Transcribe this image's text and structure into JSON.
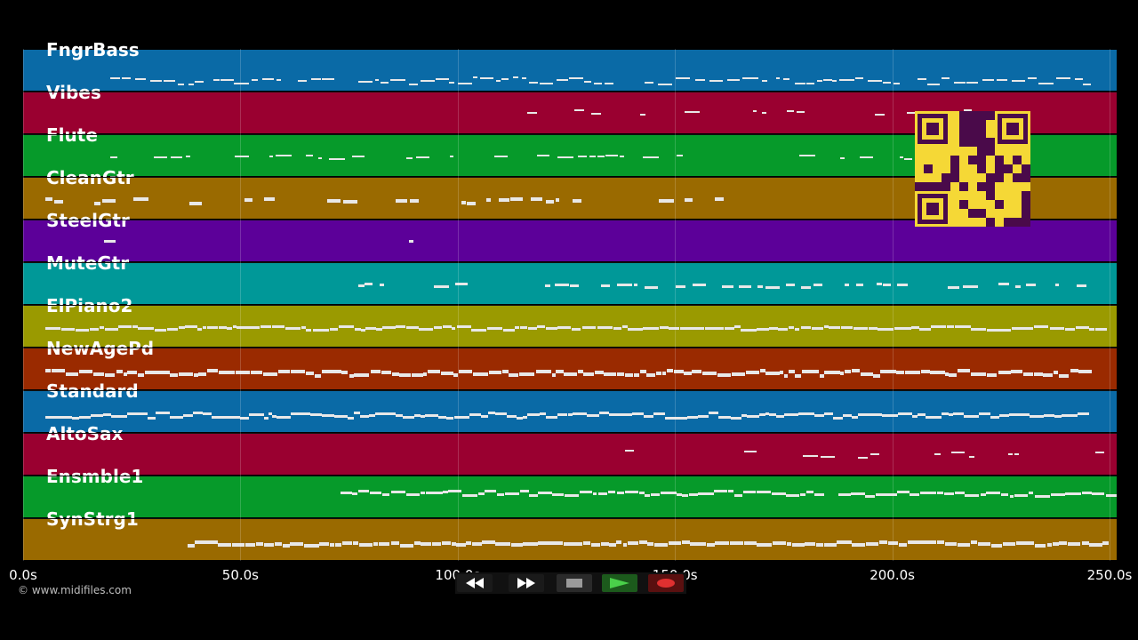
{
  "tracks": [
    {
      "name": "FngrBass",
      "color": "#0a6aa6"
    },
    {
      "name": "Vibes",
      "color": "#9a0030"
    },
    {
      "name": "Flute",
      "color": "#069a2a"
    },
    {
      "name": "CleanGtr",
      "color": "#9a6a00"
    },
    {
      "name": "SteelGtr",
      "color": "#5c0099"
    },
    {
      "name": "MuteGtr",
      "color": "#009898"
    },
    {
      "name": "ElPiano2",
      "color": "#9a9a00"
    },
    {
      "name": "NewAgePd",
      "color": "#9a2a00"
    },
    {
      "name": "Standard",
      "color": "#0a6aa6"
    },
    {
      "name": "AltoSax",
      "color": "#9a0030"
    },
    {
      "name": "Ensmble1",
      "color": "#069a2a"
    },
    {
      "name": "SynStrg1",
      "color": "#9a6a00"
    }
  ],
  "timeline": {
    "ticks": [
      "0.0s",
      "50.0s",
      "100.0s",
      "150.0s",
      "200.0s",
      "250.0s"
    ],
    "tick_seconds": [
      0,
      50,
      100,
      150,
      200,
      250
    ]
  },
  "copyright": "© www.midifiles.com",
  "transport": {
    "rewind_icon": "rewind-icon",
    "forward_icon": "fast-forward-icon",
    "stop_icon": "stop-icon",
    "play_icon": "play-icon",
    "record_icon": "record-icon"
  },
  "colors": {
    "background": "#000000",
    "play_green": "#2a8a2a",
    "record_red": "#e03030",
    "qr_yellow": "#f5d836",
    "qr_purple": "#4a0a4a"
  }
}
